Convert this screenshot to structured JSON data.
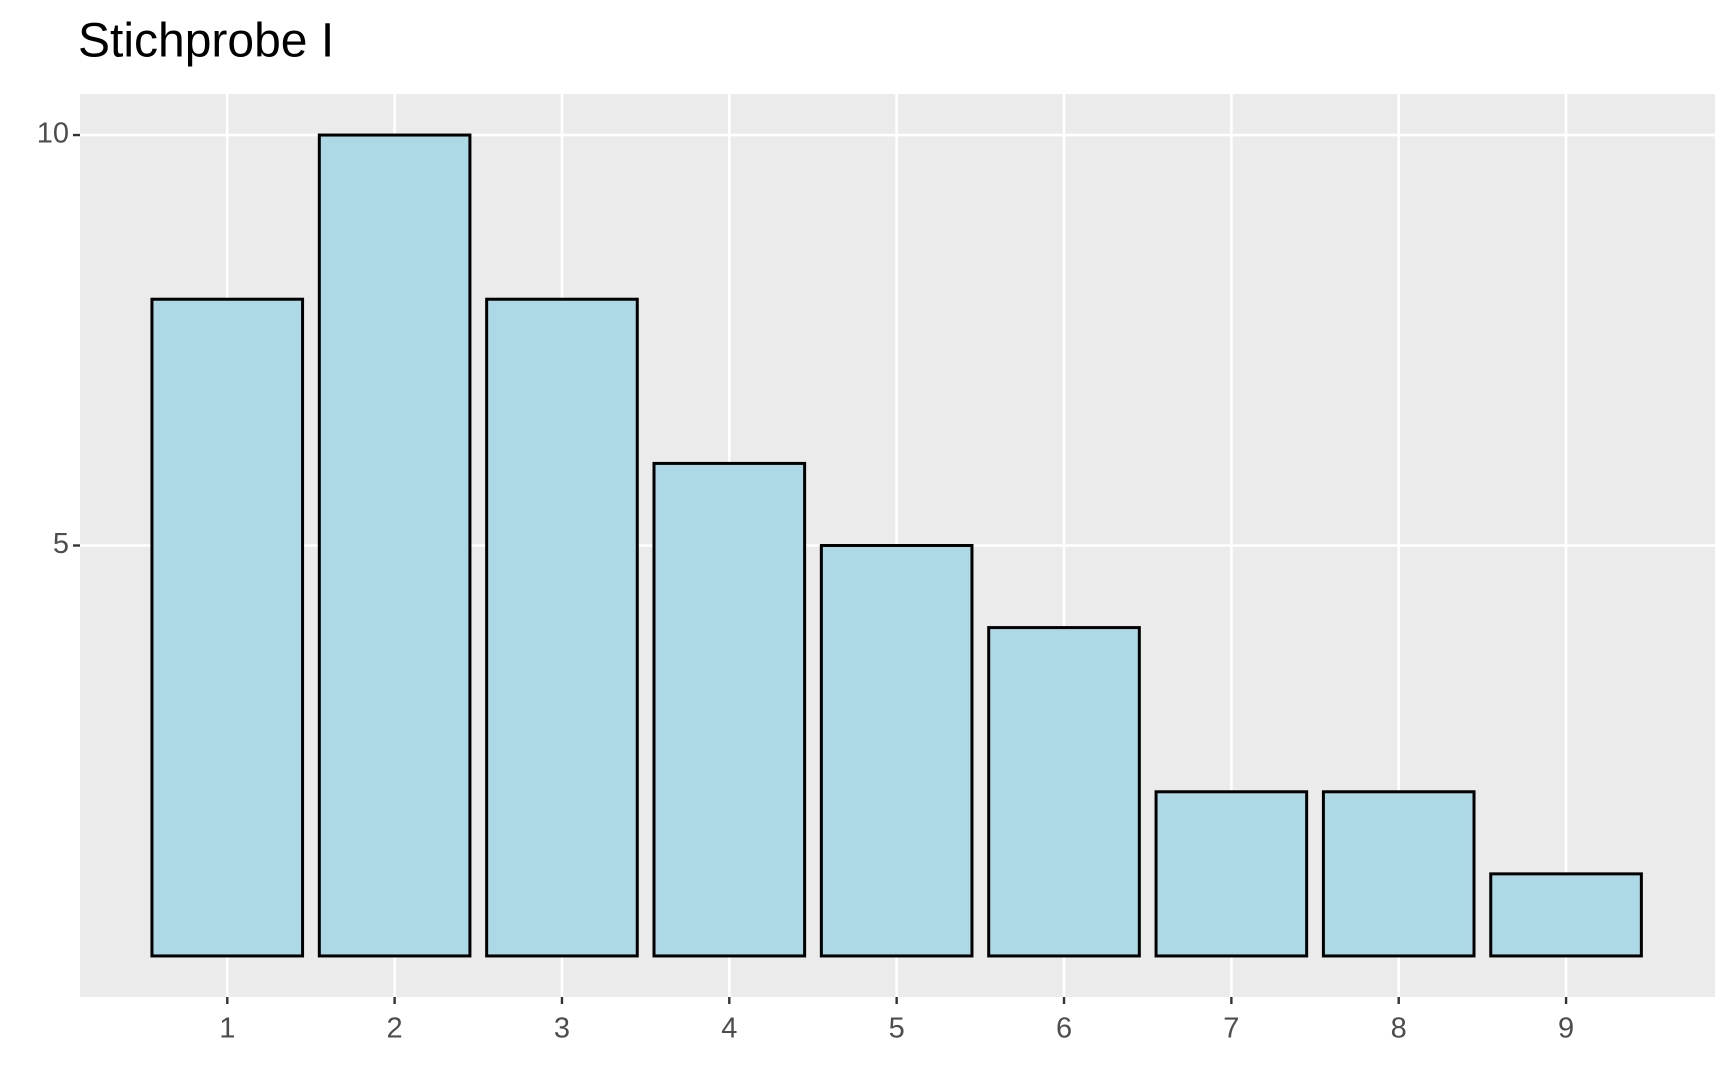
{
  "chart_data": {
    "type": "bar",
    "title": "Stichprobe I",
    "x": [
      1,
      2,
      3,
      4,
      5,
      6,
      7,
      8,
      9
    ],
    "values": [
      8,
      10,
      8,
      6,
      5,
      4,
      2,
      2,
      1
    ],
    "color": "#add8e6",
    "xlim": [
      0.12,
      9.89
    ],
    "xticks": [
      1,
      2,
      3,
      4,
      5,
      6,
      7,
      8,
      9
    ],
    "ylim": [
      -0.5,
      10.5
    ],
    "yticks": [
      5,
      10
    ],
    "grid": true
  }
}
